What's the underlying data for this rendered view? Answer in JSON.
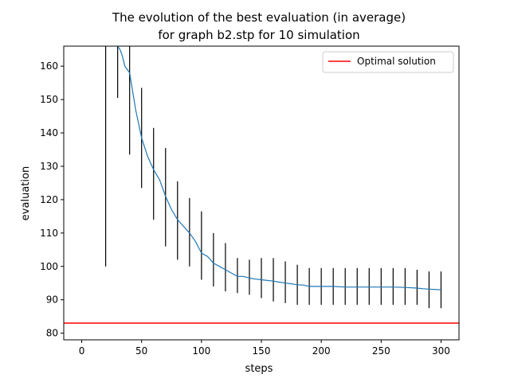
{
  "chart_data": {
    "type": "line",
    "title": "The evolution of the best evaluation (in average)",
    "subtitle": "for graph b2.stp for 10 simulation",
    "xlabel": "steps",
    "ylabel": "evaluation",
    "xlim": [
      -15,
      315
    ],
    "ylim": [
      78,
      166
    ],
    "xticks": [
      0,
      50,
      100,
      150,
      200,
      250,
      300
    ],
    "yticks": [
      80,
      90,
      100,
      110,
      120,
      130,
      140,
      150,
      160
    ],
    "grid": false,
    "legend": {
      "placement": "top-right",
      "entries": [
        "Optimal solution"
      ]
    },
    "series": [
      {
        "style": "line",
        "color": "#1f77b4",
        "x": [
          30,
          32,
          34,
          36,
          38,
          40,
          45,
          50,
          55,
          60,
          65,
          70,
          75,
          80,
          85,
          90,
          95,
          100,
          105,
          110,
          115,
          120,
          125,
          130,
          135,
          140,
          145,
          150,
          155,
          160,
          165,
          170,
          175,
          180,
          185,
          190,
          195,
          200,
          210,
          220,
          230,
          240,
          250,
          260,
          270,
          280,
          285,
          290,
          300
        ],
        "y": [
          166,
          165,
          163,
          160,
          159,
          158,
          147,
          138.5,
          133,
          129,
          126,
          121,
          117,
          114,
          112,
          110,
          107.5,
          104,
          103,
          101,
          100,
          99,
          98,
          97,
          97,
          96.5,
          96.2,
          96,
          95.8,
          95.6,
          95.3,
          95,
          94.8,
          94.5,
          94.4,
          94,
          94,
          94,
          94,
          93.8,
          93.8,
          93.8,
          93.8,
          93.8,
          93.7,
          93.5,
          93.3,
          93.2,
          93
        ]
      },
      {
        "style": "errorbar",
        "color": "#000000",
        "x": [
          20,
          30,
          40,
          50,
          60,
          70,
          80,
          90,
          100,
          110,
          120,
          130,
          140,
          150,
          160,
          170,
          180,
          190,
          200,
          210,
          220,
          230,
          240,
          250,
          260,
          270,
          280,
          290,
          300
        ],
        "low": [
          100,
          150.5,
          133.5,
          123.5,
          114,
          106,
          102,
          100,
          96,
          94,
          92.5,
          92,
          91.5,
          90.5,
          89.5,
          89,
          88.5,
          88.5,
          88.5,
          88.5,
          88.5,
          88.5,
          88.5,
          88.5,
          88.5,
          88.5,
          88.5,
          87.5,
          87.5
        ],
        "high": [
          166,
          166,
          166,
          153.5,
          141.5,
          135.5,
          125.5,
          120.5,
          116.5,
          110,
          107,
          102.5,
          102,
          102.5,
          102.5,
          101.5,
          100.5,
          99.5,
          99.5,
          99.5,
          99.5,
          99.5,
          99.5,
          99.5,
          99.5,
          99.5,
          99,
          98.5,
          98.5
        ]
      },
      {
        "style": "hline",
        "name": "Optimal solution",
        "color": "#ff0000",
        "y": 83
      }
    ]
  }
}
